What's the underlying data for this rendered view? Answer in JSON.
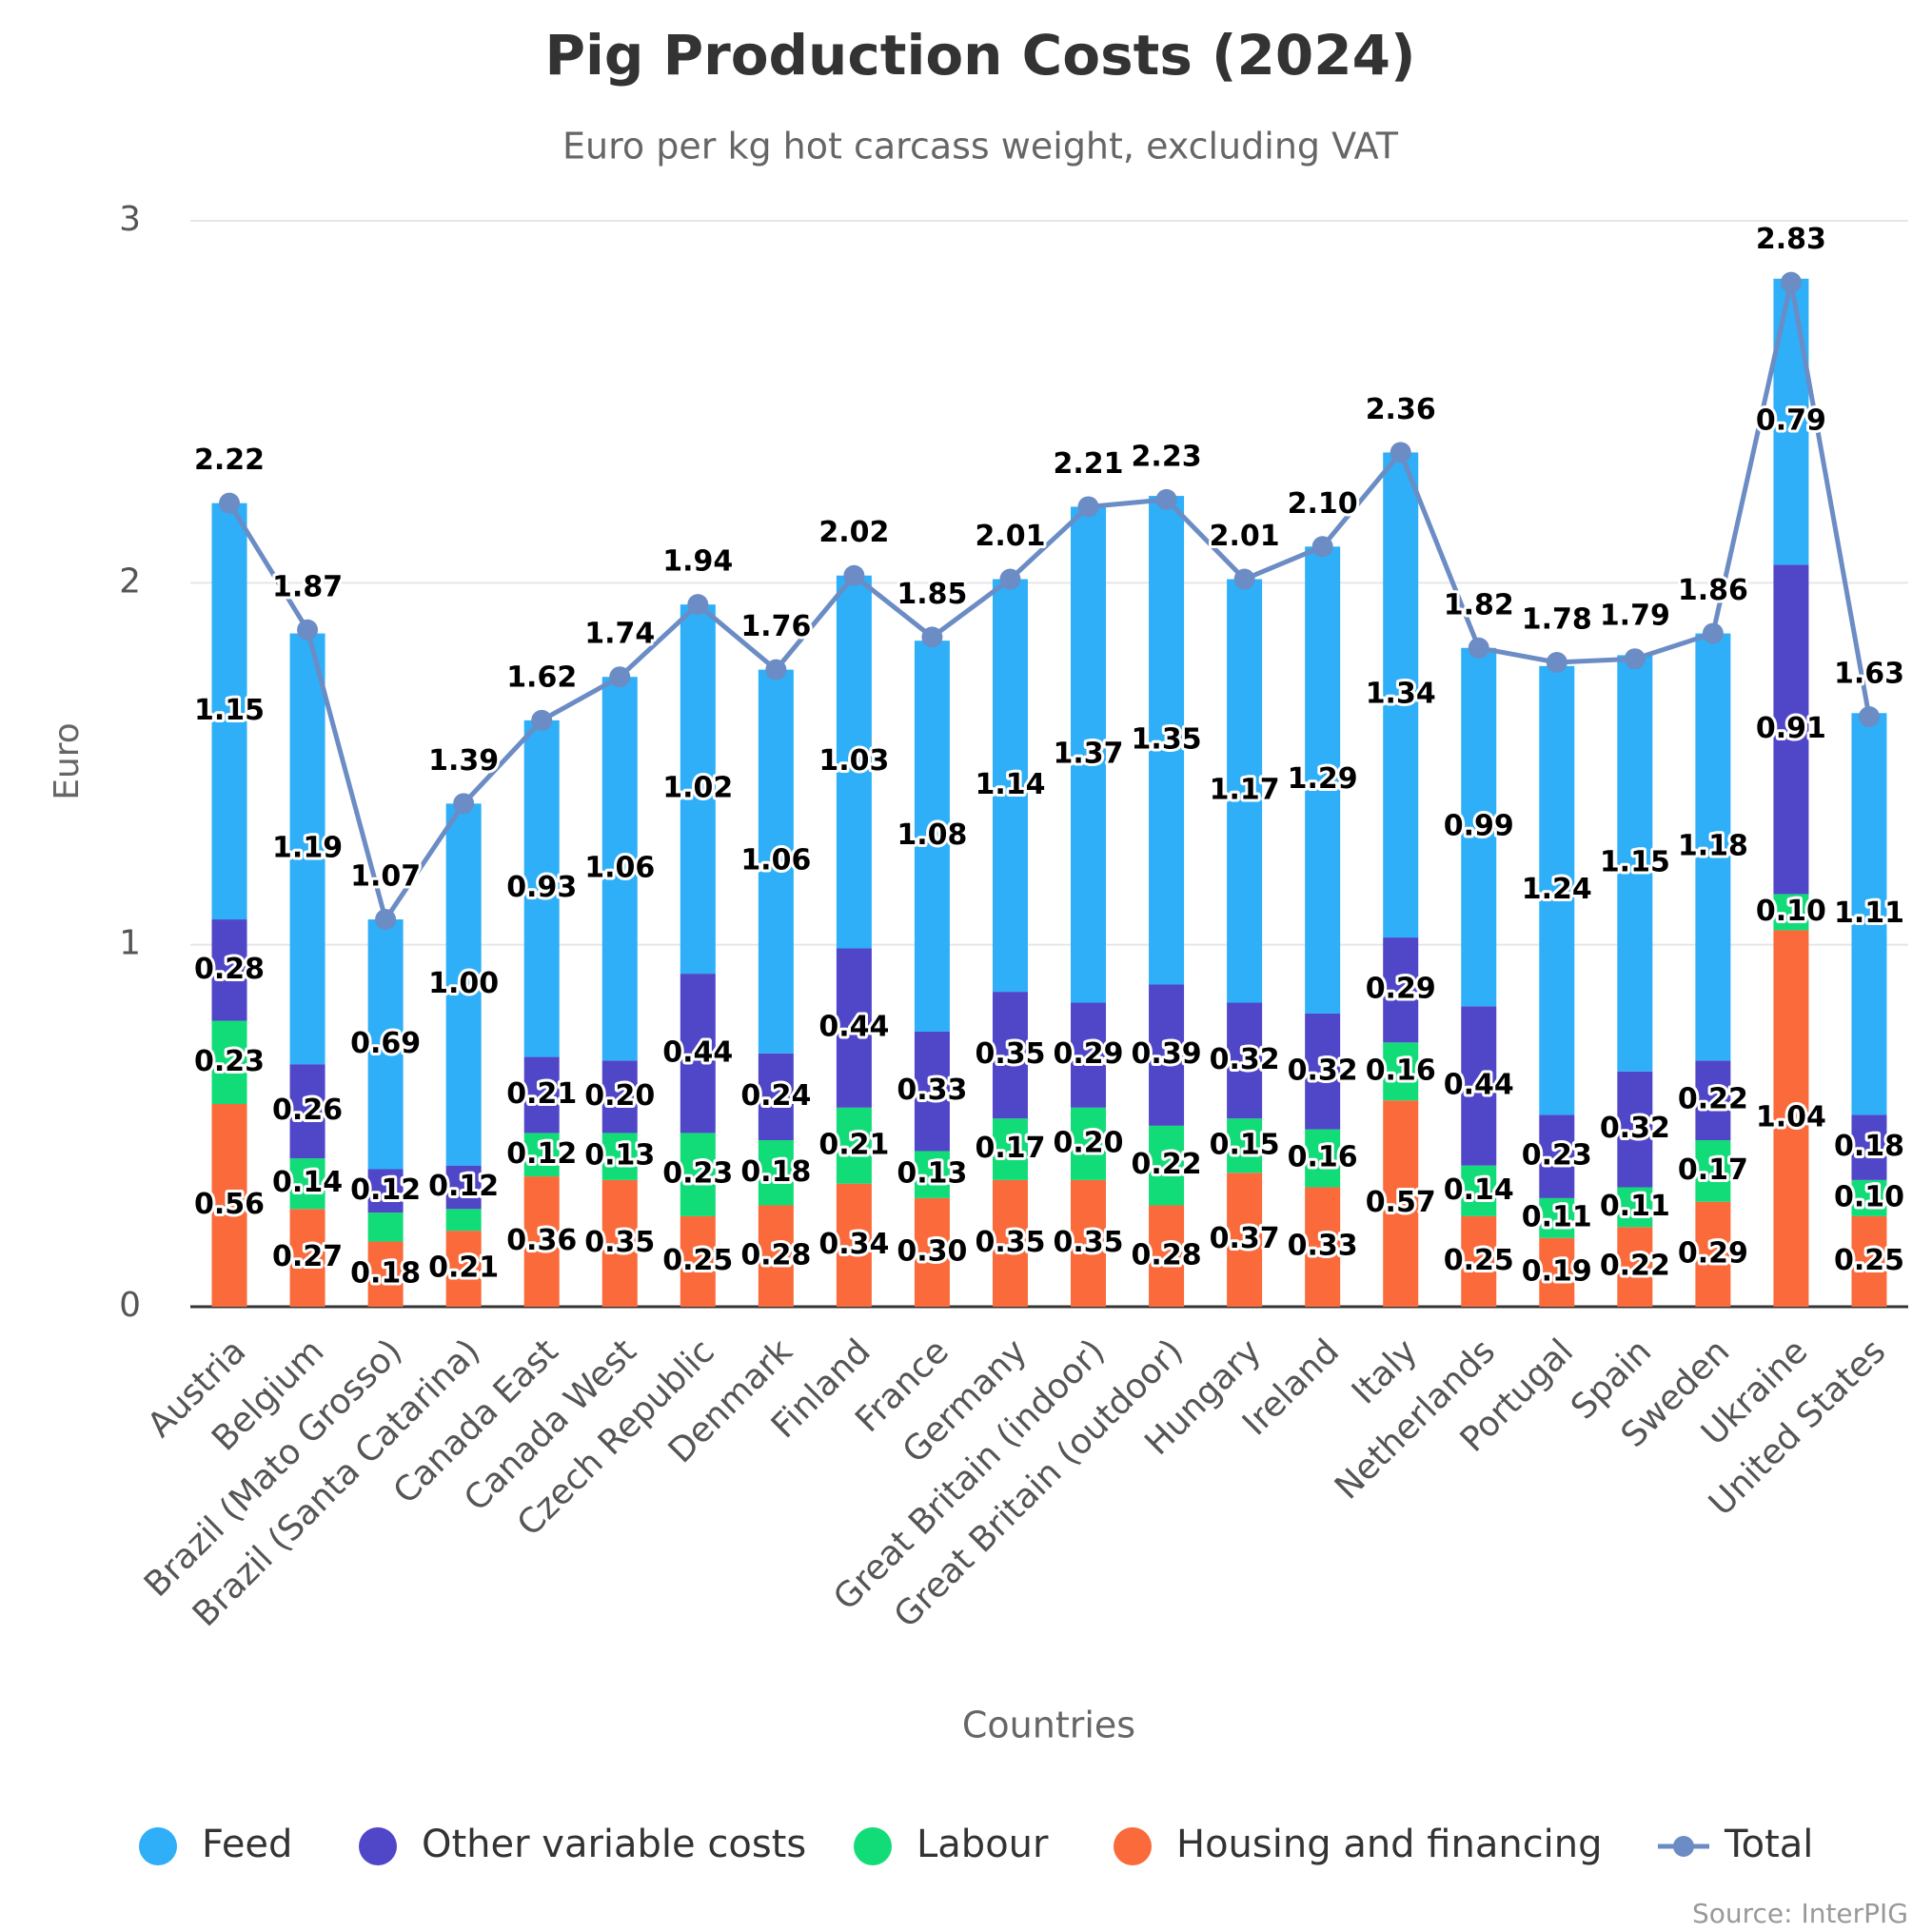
{
  "chart_data": {
    "type": "bar",
    "stacked": true,
    "title": "Pig Production Costs (2024)",
    "subtitle": "Euro per kg hot carcass weight, excluding VAT",
    "x_label": "Countries",
    "y_label": "Euro",
    "source": "Source: InterPIG",
    "categories": [
      "Austria",
      "Belgium",
      "Brazil (Mato Grosso)",
      "Brazil (Santa Catarina)",
      "Canada East",
      "Canada West",
      "Czech Republic",
      "Denmark",
      "Finland",
      "France",
      "Germany",
      "Great Britain (indoor)",
      "Great Britain (outdoor)",
      "Hungary",
      "Ireland",
      "Italy",
      "Netherlands",
      "Portugal",
      "Spain",
      "Sweden",
      "Ukraine",
      "United States"
    ],
    "ylim": [
      0,
      3
    ],
    "yticks": [
      0,
      1,
      2,
      3
    ],
    "grid": true,
    "legend": "bottom",
    "series": [
      {
        "name": "Housing and financing",
        "color": "#fa6a3a",
        "values": [
          0.56,
          0.27,
          0.18,
          0.21,
          0.36,
          0.35,
          0.25,
          0.28,
          0.34,
          0.3,
          0.35,
          0.35,
          0.28,
          0.37,
          0.33,
          0.57,
          0.25,
          0.19,
          0.22,
          0.29,
          1.04,
          0.25
        ],
        "value_labels": [
          "0.56",
          "0.27",
          "0.18",
          "0.21",
          "0.36",
          "0.35",
          "0.25",
          "0.28",
          "0.34",
          "0.30",
          "0.35",
          "0.35",
          "0.28",
          "0.37",
          "0.33",
          "0.57",
          "0.25",
          "0.19",
          "0.22",
          "0.29",
          "1.04",
          "0.25"
        ]
      },
      {
        "name": "Labour",
        "color": "#12dc78",
        "values": [
          0.23,
          0.14,
          0.08,
          0.06,
          0.12,
          0.13,
          0.23,
          0.18,
          0.21,
          0.13,
          0.17,
          0.2,
          0.22,
          0.15,
          0.16,
          0.16,
          0.14,
          0.11,
          0.11,
          0.17,
          0.1,
          0.1
        ],
        "value_labels": [
          "0.23",
          "0.14",
          null,
          null,
          "0.12",
          "0.13",
          "0.23",
          "0.18",
          "0.21",
          "0.13",
          "0.17",
          "0.20",
          "0.22",
          "0.15",
          "0.16",
          "0.16",
          "0.14",
          "0.11",
          "0.11",
          "0.17",
          "0.10",
          "0.10"
        ]
      },
      {
        "name": "Other variable costs",
        "color": "#5046c8",
        "values": [
          0.28,
          0.26,
          0.12,
          0.12,
          0.21,
          0.2,
          0.44,
          0.24,
          0.44,
          0.33,
          0.35,
          0.29,
          0.39,
          0.32,
          0.32,
          0.29,
          0.44,
          0.23,
          0.32,
          0.22,
          0.91,
          0.18
        ],
        "value_labels": [
          "0.28",
          "0.26",
          "0.12",
          "0.12",
          "0.21",
          "0.20",
          "0.44",
          "0.24",
          "0.44",
          "0.33",
          "0.35",
          "0.29",
          "0.39",
          "0.32",
          "0.32",
          "0.29",
          "0.44",
          "0.23",
          "0.32",
          "0.22",
          "0.91",
          "0.18"
        ]
      },
      {
        "name": "Feed",
        "color": "#2eaff7",
        "values": [
          1.15,
          1.19,
          0.69,
          1.0,
          0.93,
          1.06,
          1.02,
          1.06,
          1.03,
          1.08,
          1.14,
          1.37,
          1.35,
          1.17,
          1.29,
          1.34,
          0.99,
          1.24,
          1.15,
          1.18,
          0.79,
          1.11
        ],
        "value_labels": [
          "1.15",
          "1.19",
          "0.69",
          "1.00",
          "0.93",
          "1.06",
          "1.02",
          "1.06",
          "1.03",
          "1.08",
          "1.14",
          "1.37",
          "1.35",
          "1.17",
          "1.29",
          "1.34",
          "0.99",
          "1.24",
          "1.15",
          "1.18",
          "0.79",
          "1.11"
        ]
      },
      {
        "name": "Total",
        "type": "line",
        "color": "#6b8cc4",
        "values": [
          2.22,
          1.87,
          1.07,
          1.39,
          1.62,
          1.74,
          1.94,
          1.76,
          2.02,
          1.85,
          2.01,
          2.21,
          2.23,
          2.01,
          2.1,
          2.36,
          1.82,
          1.78,
          1.79,
          1.86,
          2.83,
          1.63
        ],
        "value_labels": [
          "2.22",
          "1.87",
          "1.07",
          "1.39",
          "1.62",
          "1.74",
          "1.94",
          "1.76",
          "2.02",
          "1.85",
          "2.01",
          "2.21",
          "2.23",
          "2.01",
          "2.10",
          "2.36",
          "1.82",
          "1.78",
          "1.79",
          "1.86",
          "2.83",
          "1.63"
        ]
      }
    ]
  }
}
